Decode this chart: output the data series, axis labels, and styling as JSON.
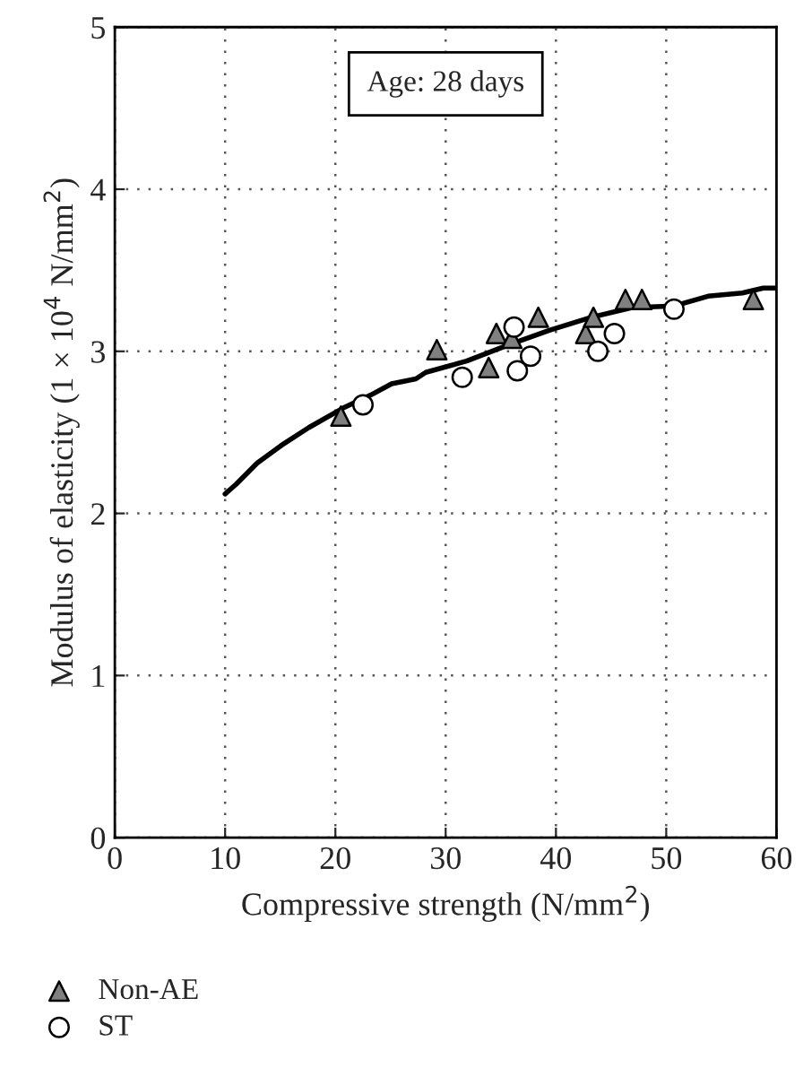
{
  "chart_data": {
    "type": "scatter",
    "xlabel": "Compressive strength (N/mm$^{2}$)",
    "ylabel": "Modulus of elasticity (1 × 10$^{4}$ N/mm$^{2}$)",
    "annotations": [
      "Age: 28 days"
    ],
    "xlim": [
      0,
      60
    ],
    "xticks": [
      0,
      10,
      20,
      30,
      40,
      50,
      60
    ],
    "ylim": [
      0,
      5
    ],
    "yticks": [
      0,
      1,
      2,
      3,
      4,
      5
    ],
    "grid": true,
    "legend": "bottom",
    "series": [
      {
        "name": "Non-AE",
        "marker": "triangle",
        "color": "#808080",
        "x": [
          20.5,
          29.2,
          33.9,
          34.6,
          36.0,
          38.4,
          42.7,
          43.4,
          46.3,
          47.8,
          57.9
        ],
        "values": [
          2.6,
          3.01,
          2.9,
          3.11,
          3.08,
          3.21,
          3.11,
          3.21,
          3.32,
          3.32,
          3.32
        ]
      },
      {
        "name": "ST",
        "marker": "circle",
        "color": "#ffffff",
        "x": [
          22.5,
          31.5,
          36.2,
          36.5,
          37.7,
          43.8,
          45.3,
          50.7
        ],
        "values": [
          2.67,
          2.84,
          3.15,
          2.88,
          2.97,
          3.0,
          3.11,
          3.26
        ]
      },
      {
        "type": "line",
        "color": "#000000",
        "marker": "none",
        "line_style": "solid",
        "x": [
          10,
          11,
          12.9,
          15.1,
          17.6,
          20.7,
          23.2,
          25.1,
          27.3,
          28.2,
          31.9,
          35.7,
          39.4,
          43.2,
          46.9,
          50.7,
          53.8,
          56.9,
          58.8,
          60
        ],
        "values": [
          2.12,
          2.18,
          2.31,
          2.42,
          2.53,
          2.65,
          2.73,
          2.8,
          2.83,
          2.87,
          2.94,
          3.04,
          3.13,
          3.21,
          3.27,
          3.28,
          3.34,
          3.36,
          3.39,
          3.39
        ]
      }
    ]
  }
}
